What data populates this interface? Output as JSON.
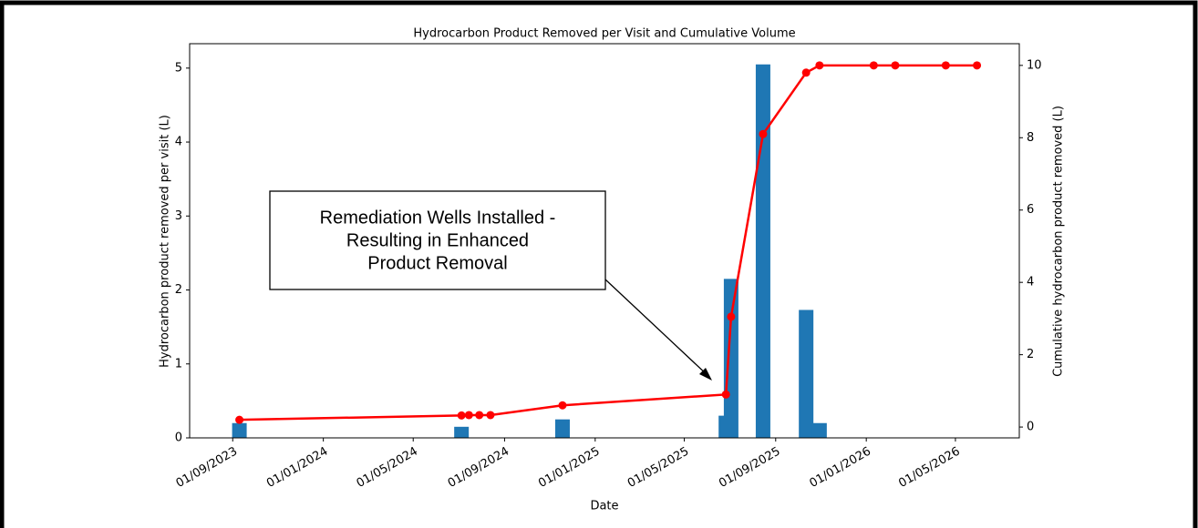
{
  "chart_data": {
    "type": "bar+line",
    "title": "Hydrocarbon Product Removed per Visit and Cumulative Volume",
    "xlabel": "Date",
    "ylabel": "Hydrocarbon product removed per visit (L)",
    "y2label": "Cumulative hydrocarbon product removed (L)",
    "x": [
      "2023-09-10",
      "2024-07-05",
      "2024-07-15",
      "2024-07-29",
      "2024-08-13",
      "2024-11-18",
      "2025-06-26",
      "2025-07-03",
      "2025-08-15",
      "2025-10-12",
      "2025-10-30",
      "2026-01-11",
      "2026-02-09",
      "2026-04-18",
      "2026-05-30"
    ],
    "series": [
      {
        "type": "bar",
        "color": "#1f77b4",
        "axis": "y",
        "values": [
          0.2,
          0.15,
          0,
          0,
          0,
          0.25,
          0.3,
          2.15,
          5.05,
          1.73,
          0.2,
          0,
          0,
          0,
          0
        ]
      },
      {
        "type": "line",
        "color": "#ff0000",
        "axis": "y2",
        "values": [
          0.2,
          0.32,
          0.33,
          0.33,
          0.33,
          0.6,
          0.9,
          3.05,
          8.1,
          9.8,
          10.0,
          10.0,
          10.0,
          10.0,
          10.0
        ]
      }
    ],
    "xlim": [
      "2023-07-05",
      "2026-07-26"
    ],
    "xticks": [
      {
        "value": "2023-09-01",
        "label": "01/09/2023"
      },
      {
        "value": "2024-01-01",
        "label": "01/01/2024"
      },
      {
        "value": "2024-05-01",
        "label": "01/05/2024"
      },
      {
        "value": "2024-09-01",
        "label": "01/09/2024"
      },
      {
        "value": "2025-01-01",
        "label": "01/01/2025"
      },
      {
        "value": "2025-05-01",
        "label": "01/05/2025"
      },
      {
        "value": "2025-09-01",
        "label": "01/09/2025"
      },
      {
        "value": "2026-01-01",
        "label": "01/01/2026"
      },
      {
        "value": "2026-05-01",
        "label": "01/05/2026"
      }
    ],
    "ylim": [
      0,
      5.33
    ],
    "yticks": [
      0,
      1,
      2,
      3,
      4,
      5
    ],
    "y2lim": [
      -0.3,
      10.6
    ],
    "y2ticks": [
      0,
      2,
      4,
      6,
      8,
      10
    ],
    "annotation": {
      "lines": [
        "Remediation Wells Installed -",
        "Resulting in Enhanced",
        "Product Removal"
      ]
    }
  }
}
